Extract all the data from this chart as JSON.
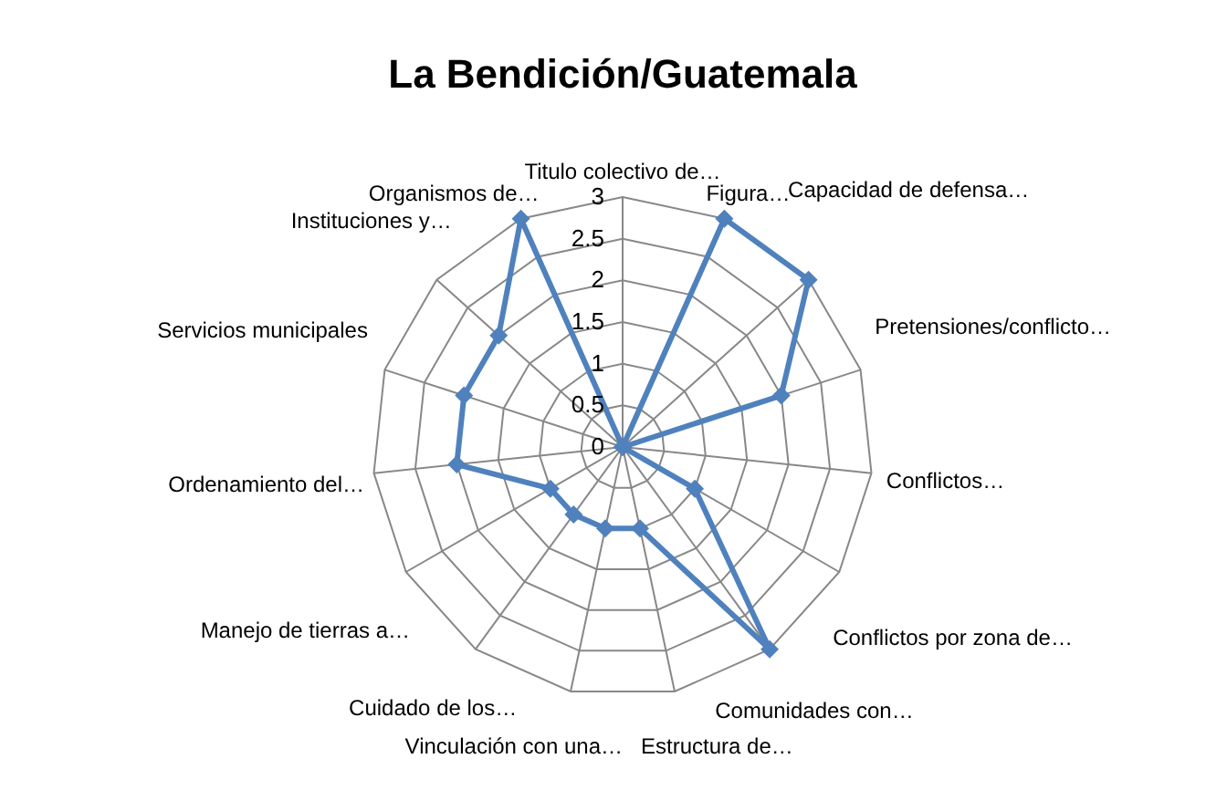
{
  "chart_data": {
    "type": "radar",
    "title": "La Bendición/Guatemala",
    "categories": [
      "Titulo colectivo de…",
      "Figura…",
      "Capacidad de defensa…",
      "Pretensiones/conflicto…",
      "Conflictos…",
      "Conflictos por zona de…",
      "Comunidades con…",
      "Estructura de…",
      "Vinculación con una…",
      "Cuidado de los…",
      "Manejo de tierras a…",
      "Ordenamiento del…",
      "Servicios municipales",
      "Instituciones y…",
      "Organismos de…"
    ],
    "series": [
      {
        "color": "#4f81bd",
        "values": [
          0,
          3,
          3,
          2,
          0,
          1,
          3,
          1,
          1,
          1,
          1,
          2,
          2,
          2,
          3
        ]
      }
    ],
    "ylim": [
      0,
      3
    ],
    "yticks": [
      0,
      0.5,
      1,
      1.5,
      2,
      2.5,
      3
    ],
    "grid": true,
    "marker": "diamond"
  }
}
